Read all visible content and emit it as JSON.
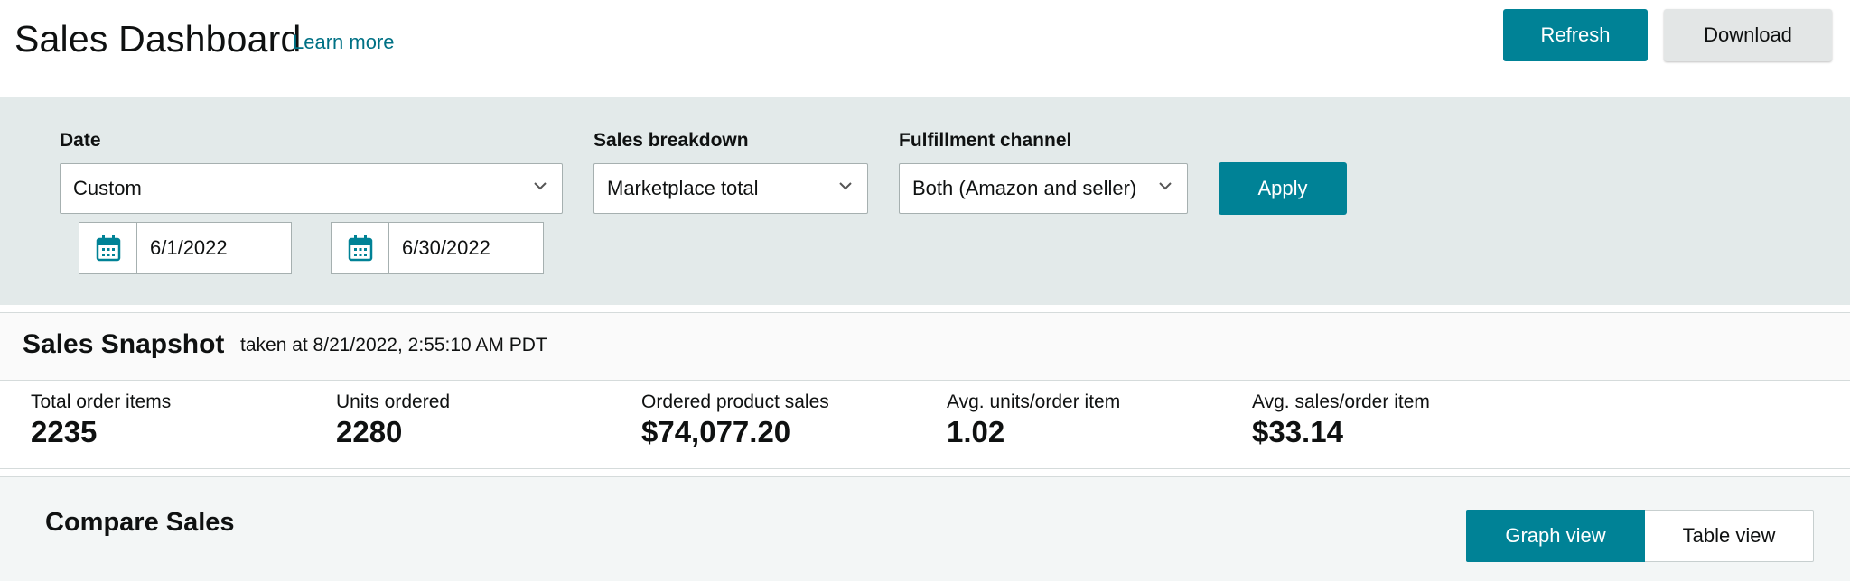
{
  "header": {
    "title": "Sales Dashboard",
    "learn_more": "Learn more",
    "refresh_label": "Refresh",
    "download_label": "Download"
  },
  "filters": {
    "date_label": "Date",
    "date_value": "Custom",
    "start_date": "6/1/2022",
    "end_date": "6/30/2022",
    "breakdown_label": "Sales breakdown",
    "breakdown_value": "Marketplace total",
    "channel_label": "Fulfillment channel",
    "channel_value": "Both (Amazon and seller)",
    "apply_label": "Apply"
  },
  "snapshot": {
    "title": "Sales Snapshot",
    "taken_at": "taken at 8/21/2022, 2:55:10 AM PDT",
    "metrics": [
      {
        "label": "Total order items",
        "value": "2235"
      },
      {
        "label": "Units ordered",
        "value": "2280"
      },
      {
        "label": "Ordered product sales",
        "value": "$74,077.20"
      },
      {
        "label": "Avg. units/order item",
        "value": "1.02"
      },
      {
        "label": "Avg. sales/order item",
        "value": "$33.14"
      }
    ]
  },
  "compare": {
    "title": "Compare Sales",
    "graph_view_label": "Graph view",
    "table_view_label": "Table view"
  },
  "icons": {
    "calendar": "calendar-icon",
    "chevron": "chevron-down-icon"
  },
  "colors": {
    "accent": "#008296",
    "link": "#007185",
    "filter_bg": "#e3eaea"
  }
}
